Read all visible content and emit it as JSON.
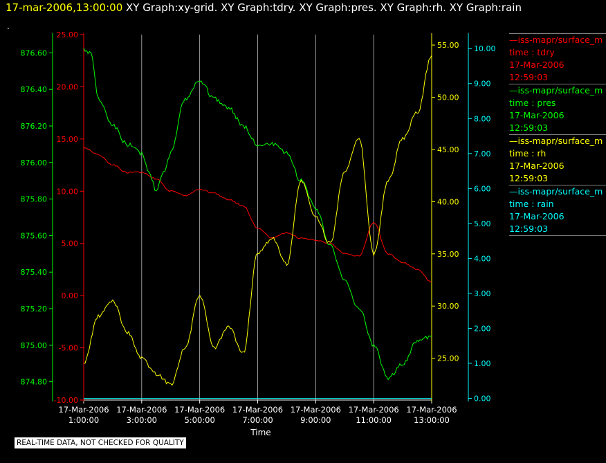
{
  "header": {
    "timestamp": "17-mar-2006,13:00:00",
    "graphs": "XY Graph:xy-grid.  XY Graph:tdry.  XY Graph:pres.  XY Graph:rh.  XY Graph:rain",
    "dot": "."
  },
  "footer": {
    "quality_note": "REAL-TIME DATA, NOT CHECKED FOR QUALITY"
  },
  "colors": {
    "tdry": "#ff0000",
    "pres": "#00ff00",
    "rh": "#ffff00",
    "rain": "#00ffff",
    "grid": "#c0c0c0",
    "xaxis": "#ffffff"
  },
  "legend": [
    {
      "line1": "—iss-mapr/surface_m",
      "line2": "time : tdry",
      "line3": "17-Mar-2006",
      "line4": "12:59:03",
      "color": "#ff0000"
    },
    {
      "line1": "—iss-mapr/surface_m",
      "line2": "time : pres",
      "line3": "17-Mar-2006",
      "line4": "12:59:03",
      "color": "#00ff00"
    },
    {
      "line1": "—iss-mapr/surface_m",
      "line2": "time : rh",
      "line3": "17-Mar-2006",
      "line4": "12:59:03",
      "color": "#ffff00"
    },
    {
      "line1": "—iss-mapr/surface_m",
      "line2": "time : rain",
      "line3": "17-Mar-2006",
      "line4": "12:59:03",
      "color": "#00ffff"
    }
  ],
  "chart_data": {
    "type": "line",
    "xlabel": "Time",
    "x_ticks": [
      {
        "date": "17-Mar-2006",
        "time": "1:00:00"
      },
      {
        "date": "17-Mar-2006",
        "time": "3:00:00"
      },
      {
        "date": "17-Mar-2006",
        "time": "5:00:00"
      },
      {
        "date": "17-Mar-2006",
        "time": "7:00:00"
      },
      {
        "date": "17-Mar-2006",
        "time": "9:00:00"
      },
      {
        "date": "17-Mar-2006",
        "time": "11:00:00"
      },
      {
        "date": "17-Mar-2006",
        "time": "13:00:00"
      }
    ],
    "xlim": [
      "17-Mar-2006 1:00:00",
      "17-Mar-2006 13:00:00"
    ],
    "grid_vertical": true,
    "legend_position": "right",
    "axes": {
      "pres": {
        "side": "left-outer",
        "ylim": [
          874.7,
          876.7
        ],
        "ticks": [
          "874.80",
          "875.00",
          "875.20",
          "875.40",
          "875.60",
          "875.80",
          "876.00",
          "876.20",
          "876.40",
          "876.60"
        ]
      },
      "tdry": {
        "side": "left-inner",
        "ylim": [
          -10,
          25
        ],
        "ticks": [
          "-10.00",
          "-5.00",
          "0.00",
          "5.00",
          "10.00",
          "15.00",
          "20.00",
          "25.00"
        ]
      },
      "rh": {
        "side": "right-inner",
        "ylim": [
          21,
          56
        ],
        "ticks": [
          "25.00",
          "30.00",
          "35.00",
          "40.00",
          "45.00",
          "50.00",
          "55.00"
        ]
      },
      "rain": {
        "side": "right-outer",
        "ylim": [
          -0.05,
          10.4
        ],
        "ticks": [
          "0.00",
          "1.00",
          "2.00",
          "3.00",
          "4.00",
          "5.00",
          "6.00",
          "7.00",
          "8.00",
          "9.00",
          "10.00"
        ]
      }
    },
    "series": [
      {
        "name": "time : tdry",
        "axis": "tdry",
        "x": [
          "01:00",
          "01:30",
          "02:00",
          "02:30",
          "03:00",
          "03:30",
          "04:00",
          "04:30",
          "05:00",
          "05:30",
          "06:00",
          "06:30",
          "07:00",
          "07:30",
          "08:00",
          "08:30",
          "09:00",
          "09:30",
          "10:00",
          "10:30",
          "11:00",
          "11:30",
          "12:00",
          "12:30",
          "13:00"
        ],
        "values": [
          14.2,
          13.5,
          12.5,
          11.8,
          11.8,
          11.2,
          10.0,
          9.6,
          10.2,
          9.8,
          9.2,
          8.6,
          6.5,
          5.5,
          6.0,
          5.5,
          5.3,
          5.0,
          4.0,
          3.8,
          7.0,
          4.0,
          3.2,
          2.5,
          1.3
        ]
      },
      {
        "name": "time : pres",
        "axis": "pres",
        "x": [
          "01:00",
          "01:15",
          "01:30",
          "02:00",
          "02:30",
          "03:00",
          "03:15",
          "03:30",
          "03:45",
          "04:00",
          "04:30",
          "05:00",
          "05:30",
          "06:00",
          "06:30",
          "07:00",
          "07:30",
          "08:00",
          "08:30",
          "09:00",
          "09:30",
          "10:00",
          "10:30",
          "11:00",
          "11:30",
          "12:00",
          "12:30",
          "13:00"
        ],
        "values": [
          876.62,
          876.6,
          876.35,
          876.2,
          876.1,
          876.05,
          875.95,
          875.85,
          875.95,
          876.05,
          876.35,
          876.45,
          876.35,
          876.3,
          876.2,
          876.1,
          876.1,
          876.05,
          875.9,
          875.75,
          875.55,
          875.35,
          875.2,
          875.0,
          874.82,
          874.9,
          875.02,
          875.05
        ]
      },
      {
        "name": "time : rh",
        "axis": "rh",
        "x": [
          "01:00",
          "01:30",
          "02:00",
          "02:30",
          "03:00",
          "03:30",
          "04:00",
          "04:30",
          "05:00",
          "05:30",
          "06:00",
          "06:30",
          "07:00",
          "07:30",
          "08:00",
          "08:30",
          "09:00",
          "09:30",
          "10:00",
          "10:30",
          "11:00",
          "11:30",
          "12:00",
          "12:30",
          "13:00"
        ],
        "values": [
          24.5,
          29.0,
          30.5,
          27.5,
          25.0,
          23.5,
          22.5,
          26.0,
          31.0,
          26.0,
          28.0,
          25.5,
          35.0,
          36.5,
          34.0,
          42.0,
          38.5,
          36.0,
          43.0,
          46.0,
          35.0,
          42.0,
          46.0,
          48.5,
          54.0
        ]
      },
      {
        "name": "time : rain",
        "axis": "rain",
        "x": [
          "01:00",
          "13:00"
        ],
        "values": [
          0.0,
          0.0
        ]
      }
    ]
  }
}
